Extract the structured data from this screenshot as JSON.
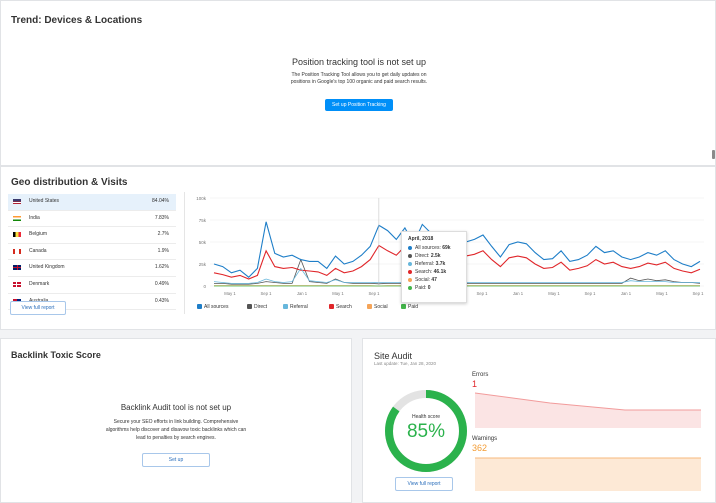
{
  "trend": {
    "title": "Trend: Devices & Locations",
    "msg_title": "Position tracking tool is not set up",
    "msg_line1": "The Position Tracking Tool allows you to get daily updates on",
    "msg_line2": "positions in Google's top 100 organic and paid search results.",
    "button": "Set up Position Tracking"
  },
  "geo": {
    "title": "Geo distribution & Visits",
    "rows": [
      {
        "country": "United States",
        "pct": "84.04%",
        "flag": "us"
      },
      {
        "country": "India",
        "pct": "7.83%",
        "flag": "in"
      },
      {
        "country": "Belgium",
        "pct": "2.7%",
        "flag": "be"
      },
      {
        "country": "Canada",
        "pct": "1.9%",
        "flag": "ca"
      },
      {
        "country": "United Kingdom",
        "pct": "1.62%",
        "flag": "uk"
      },
      {
        "country": "Denmark",
        "pct": "0.49%",
        "flag": "dk"
      },
      {
        "country": "Australia",
        "pct": "0.43%",
        "flag": "au"
      }
    ],
    "view_full": "View full report",
    "legend": [
      {
        "label": "All sources",
        "color": "#1e7ec8"
      },
      {
        "label": "Direct",
        "color": "#555555"
      },
      {
        "label": "Referral",
        "color": "#67b7dc"
      },
      {
        "label": "Search",
        "color": "#e0262a"
      },
      {
        "label": "Social",
        "color": "#f5a458"
      },
      {
        "label": "Paid",
        "color": "#43b54a"
      }
    ],
    "tooltip": {
      "date": "April, 2018",
      "rows": [
        {
          "label": "All sources: ",
          "value": "69k",
          "color": "#1e7ec8"
        },
        {
          "label": "Direct: ",
          "value": "2.5k",
          "color": "#555555"
        },
        {
          "label": "Referral: ",
          "value": "3.7k",
          "color": "#67b7dc"
        },
        {
          "label": "Search: ",
          "value": "46.1k",
          "color": "#e0262a"
        },
        {
          "label": "Social: ",
          "value": "47",
          "color": "#f5a458"
        },
        {
          "label": "Paid: ",
          "value": "0",
          "color": "#43b54a"
        }
      ]
    }
  },
  "chart_data": {
    "type": "line",
    "yticks": [
      "100k",
      "75k",
      "50k",
      "25k",
      "0"
    ],
    "ylim": [
      0,
      100000
    ],
    "xticks": [
      "May 1",
      "Sep 1",
      "Jan 1",
      "May 1",
      "Sep 1",
      "Jan 1",
      "May 1",
      "Sep 1",
      "Jan 1",
      "May 1",
      "Sep 1",
      "Jan 1",
      "May 1",
      "Sep 1"
    ],
    "series": [
      {
        "name": "All sources",
        "color": "#1e7ec8",
        "values": [
          25000,
          22000,
          15000,
          18000,
          10000,
          20000,
          73000,
          37000,
          33000,
          35000,
          30000,
          28000,
          28000,
          20000,
          34000,
          25000,
          28000,
          35000,
          45000,
          69000,
          63000,
          53000,
          66000,
          48000,
          70000,
          60000,
          55000,
          50000,
          56000,
          50000,
          53000,
          58000,
          45000,
          33000,
          47000,
          50000,
          48000,
          38000,
          30000,
          31000,
          40000,
          28000,
          30000,
          35000,
          45000,
          38000,
          40000,
          33000,
          30000,
          33000,
          38000,
          35000,
          40000,
          30000,
          25000,
          22000,
          28000
        ]
      },
      {
        "name": "Search",
        "color": "#e0262a",
        "values": [
          15000,
          13000,
          10000,
          12000,
          8000,
          12000,
          40000,
          22000,
          20000,
          21000,
          18000,
          17000,
          16000,
          12000,
          20000,
          15000,
          17000,
          22000,
          30000,
          46000,
          40000,
          35000,
          45000,
          30000,
          42000,
          36000,
          50000,
          33000,
          38000,
          34000,
          36000,
          40000,
          30000,
          22000,
          32000,
          34000,
          32000,
          25000,
          20000,
          21000,
          27000,
          18000,
          20000,
          23000,
          30000,
          25000,
          27000,
          22000,
          20000,
          22000,
          26000,
          24000,
          27000,
          20000,
          17000,
          15000,
          19000
        ]
      },
      {
        "name": "Direct",
        "color": "#555555",
        "values": [
          3000,
          3000,
          2000,
          2000,
          2000,
          3000,
          5000,
          4000,
          3000,
          3000,
          30000,
          5000,
          4000,
          3000,
          8000,
          4000,
          3000,
          3000,
          3000,
          2500,
          3000,
          3000,
          3000,
          3000,
          3000,
          3000,
          3000,
          3000,
          3000,
          3000,
          3000,
          3000,
          3000,
          3000,
          3000,
          3000,
          3000,
          3000,
          3000,
          3000,
          3000,
          3000,
          3000,
          3000,
          3000,
          3000,
          3000,
          3000,
          9000,
          6000,
          8000,
          6000,
          7000,
          5000,
          4000,
          4000,
          3000
        ]
      },
      {
        "name": "Referral",
        "color": "#67b7dc",
        "values": [
          5000,
          4000,
          3000,
          3000,
          3000,
          4000,
          8000,
          5000,
          4000,
          5000,
          20000,
          6000,
          5000,
          4000,
          7000,
          4000,
          4000,
          4000,
          4000,
          3700,
          4000,
          4000,
          4000,
          4000,
          4000,
          4000,
          4000,
          4000,
          4000,
          4000,
          4000,
          4000,
          4000,
          4000,
          4000,
          4000,
          4000,
          4000,
          4000,
          4000,
          4000,
          4000,
          4000,
          4000,
          4000,
          4000,
          4000,
          4000,
          6000,
          5000,
          5000,
          5000,
          5000,
          4000,
          4000,
          4000,
          4000
        ]
      },
      {
        "name": "Social",
        "color": "#f5a458",
        "values": [
          500,
          500,
          500,
          500,
          500,
          500,
          500,
          500,
          500,
          500,
          500,
          500,
          500,
          500,
          500,
          500,
          500,
          500,
          500,
          47,
          500,
          500,
          500,
          500,
          500,
          500,
          500,
          500,
          500,
          500,
          500,
          500,
          500,
          500,
          500,
          500,
          500,
          500,
          500,
          500,
          500,
          500,
          500,
          500,
          500,
          500,
          500,
          500,
          500,
          500,
          500,
          500,
          500,
          500,
          500,
          500,
          500
        ]
      },
      {
        "name": "Paid",
        "color": "#43b54a",
        "values": [
          0,
          0,
          0,
          0,
          0,
          0,
          0,
          0,
          0,
          0,
          0,
          0,
          0,
          0,
          0,
          0,
          0,
          0,
          0,
          0,
          0,
          0,
          0,
          0,
          0,
          0,
          0,
          0,
          0,
          0,
          0,
          0,
          0,
          0,
          0,
          0,
          0,
          0,
          0,
          0,
          0,
          0,
          0,
          0,
          0,
          0,
          0,
          0,
          0,
          0,
          0,
          0,
          0,
          0,
          0,
          0,
          0
        ]
      }
    ]
  },
  "backlink": {
    "title": "Backlink Toxic Score",
    "msg_title": "Backlink Audit tool is not set up",
    "line1": "Secure your SEO efforts in link building. Comprehensive",
    "line2": "algorithms help discover and disavow toxic backlinks which can",
    "line3": "lead to penalties by search engines.",
    "button": "Set up"
  },
  "site_audit": {
    "title": "Site Audit",
    "updated": "Last update: Tue, Jan 28, 2020",
    "health_label": "Health score",
    "health_value": "85%",
    "health": 0.85,
    "errors_label": "Errors",
    "errors_value": "1",
    "warnings_label": "Warnings",
    "warnings_value": "362",
    "view_full": "View full report"
  }
}
